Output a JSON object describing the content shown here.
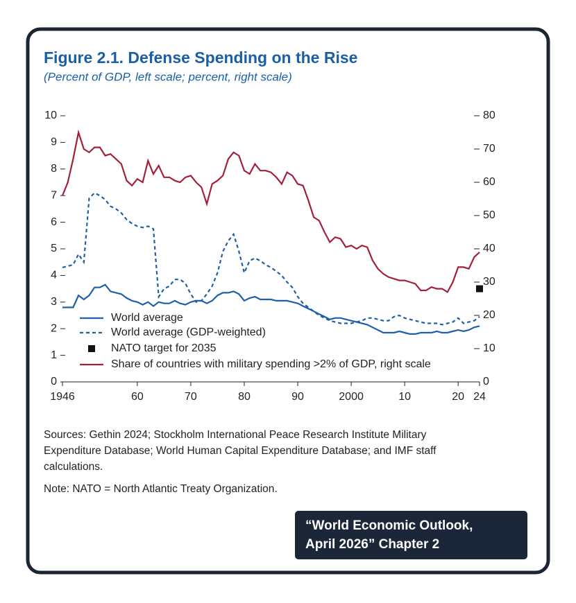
{
  "chart_data": {
    "type": "line",
    "title": "Figure 2.1.  Defense Spending on the Rise",
    "subtitle": "(Percent of GDP, left scale; percent, right scale)",
    "x": [
      1946,
      1947,
      1948,
      1949,
      1950,
      1951,
      1952,
      1953,
      1954,
      1955,
      1956,
      1957,
      1958,
      1959,
      1960,
      1961,
      1962,
      1963,
      1964,
      1965,
      1966,
      1967,
      1968,
      1969,
      1970,
      1971,
      1972,
      1973,
      1974,
      1975,
      1976,
      1977,
      1978,
      1979,
      1980,
      1981,
      1982,
      1983,
      1984,
      1985,
      1986,
      1987,
      1988,
      1989,
      1990,
      1991,
      1992,
      1993,
      1994,
      1995,
      1996,
      1997,
      1998,
      1999,
      2000,
      2001,
      2002,
      2003,
      2004,
      2005,
      2006,
      2007,
      2008,
      2009,
      2010,
      2011,
      2012,
      2013,
      2014,
      2015,
      2016,
      2017,
      2018,
      2019,
      2020,
      2021,
      2022,
      2023,
      2024
    ],
    "xlim": [
      1946,
      2024
    ],
    "xticks": [
      1946,
      {
        "value": 1960,
        "label": "60"
      },
      {
        "value": 1970,
        "label": "70"
      },
      {
        "value": 1980,
        "label": "80"
      },
      {
        "value": 1990,
        "label": "90"
      },
      2000,
      {
        "value": 2010,
        "label": "10"
      },
      {
        "value": 2020,
        "label": "20"
      },
      {
        "value": 2024,
        "label": "24"
      }
    ],
    "ylim": [
      0,
      10
    ],
    "yticks": [
      0,
      1,
      2,
      3,
      4,
      5,
      6,
      7,
      8,
      9,
      10
    ],
    "y2lim": [
      0,
      80
    ],
    "y2ticks": [
      0,
      10,
      20,
      30,
      40,
      50,
      60,
      70,
      80
    ],
    "legend": "lower left",
    "series": [
      {
        "name": "World average",
        "color": "#1f5fa8",
        "style": "solid",
        "values": [
          2.8,
          2.8,
          2.8,
          3.25,
          3.1,
          3.25,
          3.55,
          3.55,
          3.65,
          3.4,
          3.35,
          3.3,
          3.15,
          3.05,
          3.0,
          2.9,
          3.0,
          2.85,
          3.0,
          2.95,
          2.95,
          3.05,
          2.95,
          2.9,
          3.0,
          3.05,
          3.05,
          2.95,
          3.05,
          3.25,
          3.35,
          3.35,
          3.4,
          3.3,
          3.05,
          3.15,
          3.2,
          3.1,
          3.1,
          3.1,
          3.05,
          3.05,
          3.05,
          3.0,
          2.95,
          2.85,
          2.75,
          2.65,
          2.55,
          2.45,
          2.35,
          2.4,
          2.4,
          2.35,
          2.3,
          2.25,
          2.2,
          2.15,
          2.05,
          1.95,
          1.85,
          1.85,
          1.85,
          1.9,
          1.85,
          1.8,
          1.8,
          1.85,
          1.85,
          1.85,
          1.9,
          1.85,
          1.85,
          1.9,
          1.95,
          1.9,
          1.95,
          2.05,
          2.1
        ]
      },
      {
        "name": "World average (GDP-weighted)",
        "color": "#1f5fa8",
        "style": "dashed",
        "values": [
          4.3,
          4.35,
          4.4,
          4.8,
          4.5,
          6.9,
          7.1,
          7.0,
          6.85,
          6.6,
          6.5,
          6.35,
          6.1,
          5.95,
          5.85,
          5.8,
          5.85,
          5.75,
          3.2,
          3.5,
          3.6,
          3.85,
          3.85,
          3.7,
          3.3,
          3.0,
          3.05,
          3.3,
          3.6,
          4.1,
          4.9,
          5.3,
          5.55,
          4.9,
          4.1,
          4.55,
          4.65,
          4.55,
          4.4,
          4.3,
          4.15,
          4.0,
          3.75,
          3.55,
          3.2,
          2.95,
          2.8,
          2.65,
          2.5,
          2.4,
          2.3,
          2.25,
          2.2,
          2.2,
          2.2,
          2.25,
          2.3,
          2.4,
          2.4,
          2.35,
          2.3,
          2.3,
          2.45,
          2.5,
          2.4,
          2.35,
          2.3,
          2.25,
          2.2,
          2.2,
          2.2,
          2.15,
          2.2,
          2.25,
          2.4,
          2.2,
          2.25,
          2.3,
          2.45
        ]
      },
      {
        "name": "NATO target for 2035",
        "color": "#111111",
        "style": "square",
        "x": [
          2024
        ],
        "values": [
          3.5
        ]
      },
      {
        "name": "Share of countries with military spending >2% of GDP, right scale",
        "color": "#a3203a",
        "style": "solid",
        "axis": "y2",
        "values": [
          56,
          60,
          67,
          75,
          70,
          69,
          70.5,
          70.5,
          68,
          68.5,
          67,
          65.5,
          60.5,
          59,
          61,
          60,
          66.5,
          62.5,
          65,
          61.5,
          61.5,
          60.5,
          60,
          61.5,
          62,
          60,
          58.5,
          53.5,
          59.5,
          60.5,
          62,
          67,
          69,
          68,
          63.5,
          62.5,
          65.5,
          63.5,
          63.5,
          63,
          61.5,
          59.5,
          63,
          62,
          59.5,
          59,
          54.5,
          49.5,
          48.5,
          45,
          42,
          43.5,
          43,
          40.5,
          41,
          40,
          41,
          40.5,
          36.5,
          34,
          32.5,
          31.5,
          31,
          30.5,
          30.5,
          30,
          29.5,
          27.5,
          27.5,
          28.5,
          28,
          28,
          27,
          30,
          34.5,
          34.5,
          34,
          37.5,
          39
        ]
      }
    ]
  },
  "sources": [
    "Sources: Gethin 2024; Stockholm International Peace Research Institute Military",
    "Expenditure Database; World Human Capital Expenditure Database; and IMF staff",
    "calculations."
  ],
  "note": "Note: NATO = North Atlantic Treaty Organization.",
  "badge": [
    "“World Economic Outlook,",
    "April 2026” Chapter 2"
  ]
}
